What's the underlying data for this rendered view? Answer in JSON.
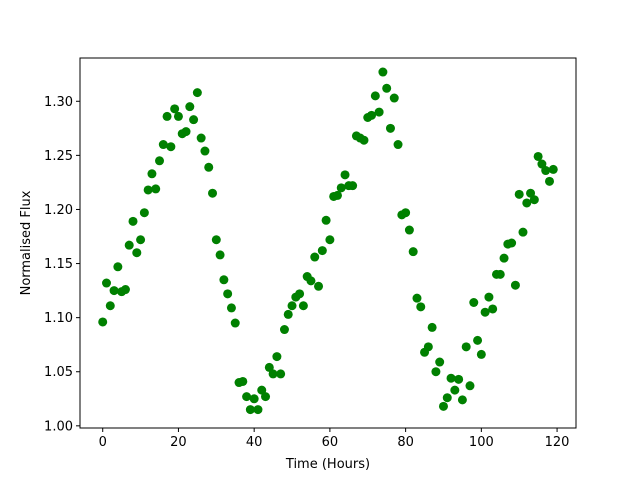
{
  "chart_data": {
    "type": "scatter",
    "title": "",
    "xlabel": "Time (Hours)",
    "ylabel": "Normalised Flux",
    "xlim": [
      -6,
      125
    ],
    "ylim": [
      0.998,
      1.34
    ],
    "xticks": [
      0,
      20,
      40,
      60,
      80,
      100,
      120
    ],
    "yticks": [
      1.0,
      1.05,
      1.1,
      1.15,
      1.2,
      1.25,
      1.3
    ],
    "ytick_labels": [
      "1.00",
      "1.05",
      "1.10",
      "1.15",
      "1.20",
      "1.25",
      "1.30"
    ],
    "grid": false,
    "legend": "none",
    "color": "#008000",
    "series": [
      {
        "x": [
          0,
          1,
          2,
          3,
          4,
          5,
          6,
          7,
          8,
          9,
          10,
          11,
          12,
          13,
          14,
          15,
          16,
          17,
          18,
          19,
          20,
          21,
          22,
          23,
          24,
          25,
          26,
          27,
          28,
          29,
          30,
          31,
          32,
          33,
          34,
          35,
          36,
          37,
          38,
          39,
          40,
          41,
          42,
          43,
          44,
          45,
          46,
          47,
          48,
          49,
          50,
          51,
          52,
          53,
          54,
          55,
          56,
          57,
          58,
          59,
          60,
          61,
          62,
          63,
          64,
          65,
          66,
          67,
          68,
          69,
          70,
          71,
          72,
          73,
          74,
          75,
          76,
          77,
          78,
          79,
          80,
          81,
          82,
          83,
          84,
          85,
          86,
          87,
          88,
          89,
          90,
          91,
          92,
          93,
          94,
          95,
          96,
          97,
          98,
          99,
          100,
          101,
          102,
          103,
          104,
          105,
          106,
          107,
          108,
          109,
          110,
          111,
          112,
          113,
          114,
          115,
          116,
          117,
          118,
          119
        ],
        "y": [
          1.096,
          1.132,
          1.111,
          1.125,
          1.147,
          1.124,
          1.126,
          1.167,
          1.189,
          1.16,
          1.172,
          1.197,
          1.218,
          1.233,
          1.219,
          1.245,
          1.26,
          1.286,
          1.258,
          1.293,
          1.286,
          1.27,
          1.272,
          1.295,
          1.283,
          1.308,
          1.266,
          1.254,
          1.239,
          1.215,
          1.172,
          1.158,
          1.135,
          1.122,
          1.109,
          1.095,
          1.04,
          1.041,
          1.027,
          1.015,
          1.025,
          1.015,
          1.033,
          1.027,
          1.054,
          1.048,
          1.064,
          1.048,
          1.089,
          1.103,
          1.111,
          1.119,
          1.122,
          1.111,
          1.138,
          1.134,
          1.156,
          1.129,
          1.162,
          1.19,
          1.172,
          1.212,
          1.213,
          1.22,
          1.232,
          1.222,
          1.222,
          1.268,
          1.266,
          1.264,
          1.285,
          1.287,
          1.305,
          1.29,
          1.327,
          1.312,
          1.275,
          1.303,
          1.26,
          1.195,
          1.197,
          1.181,
          1.161,
          1.118,
          1.11,
          1.068,
          1.073,
          1.091,
          1.05,
          1.059,
          1.018,
          1.026,
          1.044,
          1.033,
          1.043,
          1.024,
          1.073,
          1.037,
          1.114,
          1.079,
          1.066,
          1.105,
          1.119,
          1.108,
          1.14,
          1.14,
          1.155,
          1.168,
          1.169,
          1.13,
          1.214,
          1.179,
          1.206,
          1.215,
          1.209,
          1.249,
          1.242,
          1.236,
          1.226,
          1.237
        ]
      }
    ]
  }
}
